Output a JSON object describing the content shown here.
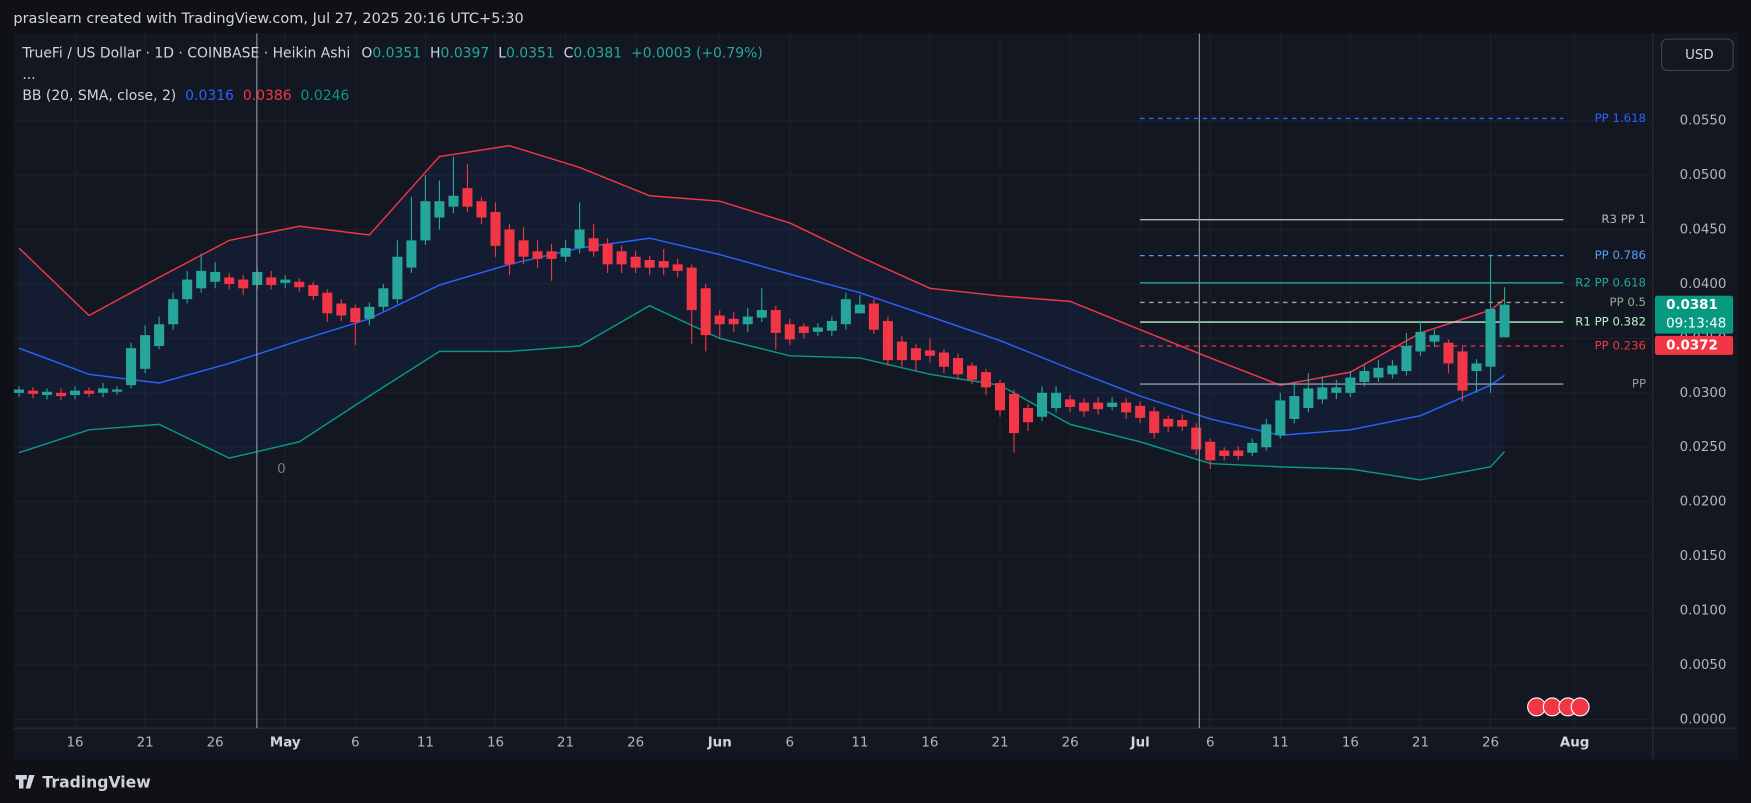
{
  "header": {
    "caption": "praslearn created with TradingView.com, Jul 27, 2025 20:16 UTC+5:30",
    "currency_button": "USD",
    "footer_brand": "TradingView"
  },
  "chart_data": {
    "type": "candlestick",
    "symbol_line": "TrueFi / US Dollar · 1D · COINBASE · Heikin Ashi",
    "ohlc_labels": [
      "O",
      "H",
      "L",
      "C"
    ],
    "change_label": "+0.0003 (+0.79%)",
    "more": "...",
    "annotation": "0",
    "up_color": "#26a69a",
    "down_color": "#f23645",
    "categories": [
      "Apr 12",
      "Apr 13",
      "Apr 14",
      "Apr 15",
      "Apr 16",
      "Apr 17",
      "Apr 18",
      "Apr 19",
      "Apr 20",
      "Apr 21",
      "Apr 22",
      "Apr 23",
      "Apr 24",
      "Apr 25",
      "Apr 26",
      "Apr 27",
      "Apr 28",
      "Apr 29",
      "Apr 30",
      "May 1",
      "May 2",
      "May 3",
      "May 4",
      "May 5",
      "May 6",
      "May 7",
      "May 8",
      "May 9",
      "May 10",
      "May 11",
      "May 12",
      "May 13",
      "May 14",
      "May 15",
      "May 16",
      "May 17",
      "May 18",
      "May 19",
      "May 20",
      "May 21",
      "May 22",
      "May 23",
      "May 24",
      "May 25",
      "May 26",
      "May 27",
      "May 28",
      "May 29",
      "May 30",
      "May 31",
      "Jun 1",
      "Jun 2",
      "Jun 3",
      "Jun 4",
      "Jun 5",
      "Jun 6",
      "Jun 7",
      "Jun 8",
      "Jun 9",
      "Jun 10",
      "Jun 11",
      "Jun 12",
      "Jun 13",
      "Jun 14",
      "Jun 15",
      "Jun 16",
      "Jun 17",
      "Jun 18",
      "Jun 19",
      "Jun 20",
      "Jun 21",
      "Jun 22",
      "Jun 23",
      "Jun 24",
      "Jun 25",
      "Jun 26",
      "Jun 27",
      "Jun 28",
      "Jun 29",
      "Jun 30",
      "Jul 1",
      "Jul 2",
      "Jul 3",
      "Jul 4",
      "Jul 5",
      "Jul 6",
      "Jul 7",
      "Jul 8",
      "Jul 9",
      "Jul 10",
      "Jul 11",
      "Jul 12",
      "Jul 13",
      "Jul 14",
      "Jul 15",
      "Jul 16",
      "Jul 17",
      "Jul 18",
      "Jul 19",
      "Jul 20",
      "Jul 21",
      "Jul 22",
      "Jul 23",
      "Jul 24",
      "Jul 25",
      "Jul 26",
      "Jul 27"
    ],
    "open": [
      0.03,
      0.0302,
      0.0298,
      0.03,
      0.0298,
      0.0302,
      0.03,
      0.0301,
      0.0307,
      0.0322,
      0.0343,
      0.0363,
      0.0386,
      0.0396,
      0.0402,
      0.0406,
      0.0404,
      0.0399,
      0.0406,
      0.0401,
      0.0402,
      0.0399,
      0.0392,
      0.0382,
      0.0378,
      0.0368,
      0.0379,
      0.0386,
      0.0415,
      0.044,
      0.0461,
      0.0471,
      0.0488,
      0.0476,
      0.0466,
      0.045,
      0.044,
      0.043,
      0.043,
      0.0425,
      0.0433,
      0.0442,
      0.0437,
      0.043,
      0.0425,
      0.0422,
      0.0421,
      0.0418,
      0.0415,
      0.0396,
      0.0371,
      0.0368,
      0.0363,
      0.0369,
      0.0376,
      0.0363,
      0.0361,
      0.0356,
      0.0357,
      0.0363,
      0.0373,
      0.0382,
      0.0366,
      0.0347,
      0.0341,
      0.0339,
      0.0337,
      0.0332,
      0.0325,
      0.0319,
      0.0309,
      0.0299,
      0.0286,
      0.0278,
      0.0286,
      0.0294,
      0.0291,
      0.0291,
      0.0287,
      0.0291,
      0.0288,
      0.0283,
      0.0276,
      0.0275,
      0.0268,
      0.0255,
      0.0247,
      0.0247,
      0.0245,
      0.025,
      0.0261,
      0.0276,
      0.0286,
      0.0294,
      0.03,
      0.03,
      0.031,
      0.0314,
      0.0317,
      0.032,
      0.0338,
      0.0347,
      0.0346,
      0.0338,
      0.032,
      0.0324,
      0.0351
    ],
    "high": [
      0.0306,
      0.0305,
      0.0304,
      0.0304,
      0.0306,
      0.0305,
      0.0309,
      0.0306,
      0.0346,
      0.0362,
      0.037,
      0.0392,
      0.0412,
      0.0428,
      0.042,
      0.041,
      0.0408,
      0.0415,
      0.0412,
      0.0408,
      0.0405,
      0.0402,
      0.0395,
      0.0386,
      0.0381,
      0.0383,
      0.04,
      0.044,
      0.048,
      0.05,
      0.0495,
      0.0517,
      0.051,
      0.048,
      0.0475,
      0.0455,
      0.0452,
      0.044,
      0.0437,
      0.044,
      0.0475,
      0.0455,
      0.0442,
      0.0435,
      0.043,
      0.0426,
      0.0432,
      0.0423,
      0.0418,
      0.04,
      0.0376,
      0.0374,
      0.0378,
      0.0396,
      0.038,
      0.0368,
      0.0364,
      0.0364,
      0.037,
      0.0392,
      0.039,
      0.0386,
      0.037,
      0.0352,
      0.0345,
      0.035,
      0.034,
      0.0336,
      0.0328,
      0.0322,
      0.0312,
      0.0303,
      0.029,
      0.0306,
      0.0306,
      0.0298,
      0.0295,
      0.0296,
      0.0296,
      0.0295,
      0.0292,
      0.0287,
      0.0279,
      0.028,
      0.0272,
      0.0258,
      0.025,
      0.0251,
      0.0258,
      0.0276,
      0.03,
      0.031,
      0.0318,
      0.0315,
      0.0312,
      0.032,
      0.0325,
      0.033,
      0.033,
      0.0355,
      0.0366,
      0.0358,
      0.0349,
      0.0342,
      0.0331,
      0.0427,
      0.0397
    ],
    "low": [
      0.0296,
      0.0295,
      0.0294,
      0.0293,
      0.0294,
      0.0296,
      0.0296,
      0.0298,
      0.0304,
      0.0318,
      0.034,
      0.0358,
      0.0382,
      0.0392,
      0.0396,
      0.0395,
      0.039,
      0.0395,
      0.0395,
      0.0396,
      0.0393,
      0.0385,
      0.0365,
      0.0366,
      0.0344,
      0.0362,
      0.0375,
      0.0382,
      0.041,
      0.0436,
      0.045,
      0.0465,
      0.0466,
      0.0455,
      0.0425,
      0.0408,
      0.0418,
      0.0415,
      0.0403,
      0.042,
      0.0428,
      0.0425,
      0.041,
      0.041,
      0.041,
      0.0408,
      0.0408,
      0.0406,
      0.0345,
      0.0338,
      0.035,
      0.0356,
      0.0356,
      0.0365,
      0.034,
      0.0344,
      0.035,
      0.0352,
      0.0352,
      0.0358,
      0.0376,
      0.0354,
      0.0325,
      0.0324,
      0.032,
      0.0328,
      0.0318,
      0.0312,
      0.0308,
      0.0298,
      0.0278,
      0.0245,
      0.0265,
      0.0274,
      0.0282,
      0.0282,
      0.0278,
      0.028,
      0.0284,
      0.0276,
      0.0272,
      0.0258,
      0.0264,
      0.0265,
      0.0243,
      0.023,
      0.0238,
      0.0238,
      0.0242,
      0.0247,
      0.0258,
      0.0272,
      0.0282,
      0.029,
      0.0294,
      0.0296,
      0.0306,
      0.031,
      0.0313,
      0.0316,
      0.0334,
      0.0342,
      0.0318,
      0.0292,
      0.03,
      0.03,
      0.0351
    ],
    "close": [
      0.0303,
      0.0299,
      0.0301,
      0.0297,
      0.0302,
      0.0299,
      0.0304,
      0.0303,
      0.0341,
      0.0353,
      0.0363,
      0.0386,
      0.0404,
      0.0412,
      0.0411,
      0.04,
      0.0396,
      0.0411,
      0.0399,
      0.0404,
      0.0397,
      0.0389,
      0.0373,
      0.0371,
      0.0365,
      0.0379,
      0.0396,
      0.0425,
      0.044,
      0.0476,
      0.0476,
      0.0481,
      0.0471,
      0.0461,
      0.0435,
      0.0418,
      0.0425,
      0.0423,
      0.0423,
      0.0433,
      0.045,
      0.043,
      0.0418,
      0.0418,
      0.0415,
      0.0415,
      0.0415,
      0.0412,
      0.0376,
      0.0353,
      0.0363,
      0.0363,
      0.037,
      0.0376,
      0.0355,
      0.0349,
      0.0355,
      0.036,
      0.0366,
      0.0386,
      0.0381,
      0.0358,
      0.033,
      0.033,
      0.033,
      0.0334,
      0.0324,
      0.0317,
      0.0312,
      0.0305,
      0.0284,
      0.0263,
      0.0273,
      0.03,
      0.03,
      0.0287,
      0.0283,
      0.0285,
      0.0291,
      0.0282,
      0.0277,
      0.0263,
      0.0269,
      0.0269,
      0.0248,
      0.0238,
      0.0242,
      0.0242,
      0.0254,
      0.0271,
      0.0293,
      0.0297,
      0.0304,
      0.0305,
      0.0305,
      0.0314,
      0.032,
      0.0323,
      0.0325,
      0.0343,
      0.0356,
      0.0353,
      0.0327,
      0.0302,
      0.0327,
      0.0377,
      0.0381
    ],
    "bb": {
      "label": "BB (20, SMA, close, 2)",
      "x": [
        "Apr 12",
        "Apr 17",
        "Apr 22",
        "Apr 27",
        "May 2",
        "May 7",
        "May 12",
        "May 17",
        "May 22",
        "May 27",
        "Jun 1",
        "Jun 6",
        "Jun 11",
        "Jun 16",
        "Jun 21",
        "Jun 26",
        "Jul 1",
        "Jul 6",
        "Jul 11",
        "Jul 16",
        "Jul 21",
        "Jul 26",
        "Jul 27"
      ],
      "basis": {
        "color": "#2962ff",
        "values": [
          0.0341,
          0.0317,
          0.0309,
          0.0327,
          0.0348,
          0.0368,
          0.0399,
          0.0418,
          0.0433,
          0.0442,
          0.0427,
          0.0409,
          0.0392,
          0.037,
          0.0348,
          0.0322,
          0.0297,
          0.0276,
          0.0261,
          0.0266,
          0.0279,
          0.0307,
          0.0316
        ]
      },
      "upper": {
        "color": "#f23645",
        "values": [
          0.0433,
          0.0371,
          0.0406,
          0.044,
          0.0453,
          0.0445,
          0.0517,
          0.0527,
          0.0507,
          0.0481,
          0.0476,
          0.0456,
          0.0425,
          0.0396,
          0.0389,
          0.0384,
          0.0358,
          0.0332,
          0.0307,
          0.0319,
          0.0355,
          0.0376,
          0.0386
        ]
      },
      "lower": {
        "color": "#089981",
        "values": [
          0.0245,
          0.0266,
          0.0271,
          0.024,
          0.0255,
          0.0297,
          0.0338,
          0.0338,
          0.0343,
          0.038,
          0.035,
          0.0334,
          0.0332,
          0.0317,
          0.0307,
          0.0271,
          0.0255,
          0.0235,
          0.0232,
          0.023,
          0.022,
          0.0232,
          0.0246
        ]
      }
    },
    "levels_start": "Jul 1",
    "levels": [
      {
        "label": "PP 1.618",
        "value": 0.0552,
        "color": "#2962ff",
        "dashed": true
      },
      {
        "label": "R3 PP 1",
        "value": 0.0459,
        "color": "#b2b5be",
        "dashed": false
      },
      {
        "label": "PP 0.786",
        "value": 0.0426,
        "color": "#5b9cf6",
        "dashed": true
      },
      {
        "label": "R2 PP 0.618",
        "value": 0.0401,
        "color": "#26a69a",
        "dashed": false
      },
      {
        "label": "PP 0.5",
        "value": 0.0383,
        "color": "#8fae8f",
        "dashed": true
      },
      {
        "label": "R1 PP 0.382",
        "value": 0.0365,
        "color": "#b9f6ca",
        "dashed": false
      },
      {
        "label": "PP 0.236",
        "value": 0.0343,
        "color": "#f23645",
        "dashed": true
      },
      {
        "label": "PP",
        "value": 0.0308,
        "color": "#9598a1",
        "dashed": false
      }
    ],
    "price_markers": [
      {
        "value": 0.0381,
        "color": "#089981"
      },
      {
        "value": 0.0372,
        "color": "#f23645"
      }
    ],
    "countdown": "09:13:48",
    "ylim": [
      -0.0008,
      0.063
    ],
    "yticks": [
      {
        "value": 0,
        "label": "0.0000"
      },
      {
        "value": 0.005,
        "label": "0.0050"
      },
      {
        "value": 0.01,
        "label": "0.0100"
      },
      {
        "value": 0.015,
        "label": "0.0150"
      },
      {
        "value": 0.02,
        "label": "0.0200"
      },
      {
        "value": 0.025,
        "label": "0.0250"
      },
      {
        "value": 0.03,
        "label": "0.0300"
      },
      {
        "value": 0.035,
        "label": "0.0350"
      },
      {
        "value": 0.04,
        "label": "0.0400"
      },
      {
        "value": 0.045,
        "label": "0.0450"
      },
      {
        "value": 0.05,
        "label": "0.0500"
      },
      {
        "value": 0.055,
        "label": "0.0550"
      }
    ],
    "xticks": [
      {
        "value": "Apr 16",
        "label": "16"
      },
      {
        "value": "Apr 21",
        "label": "21"
      },
      {
        "value": "Apr 26",
        "label": "26"
      },
      {
        "value": "May 1",
        "label": "May"
      },
      {
        "value": "May 6",
        "label": "6"
      },
      {
        "value": "May 11",
        "label": "11"
      },
      {
        "value": "May 16",
        "label": "16"
      },
      {
        "value": "May 21",
        "label": "21"
      },
      {
        "value": "May 26",
        "label": "26"
      },
      {
        "value": "Jun 1",
        "label": "Jun"
      },
      {
        "value": "Jun 6",
        "label": "6"
      },
      {
        "value": "Jun 11",
        "label": "11"
      },
      {
        "value": "Jun 16",
        "label": "16"
      },
      {
        "value": "Jun 21",
        "label": "21"
      },
      {
        "value": "Jun 26",
        "label": "26"
      },
      {
        "value": "Jul 1",
        "label": "Jul"
      },
      {
        "value": "Jul 6",
        "label": "6"
      },
      {
        "value": "Jul 11",
        "label": "11"
      },
      {
        "value": "Jul 16",
        "label": "16"
      },
      {
        "value": "Jul 21",
        "label": "21"
      },
      {
        "value": "Jul 26",
        "label": "26"
      },
      {
        "value": "Aug 1",
        "label": "Aug"
      }
    ],
    "grid": true
  }
}
